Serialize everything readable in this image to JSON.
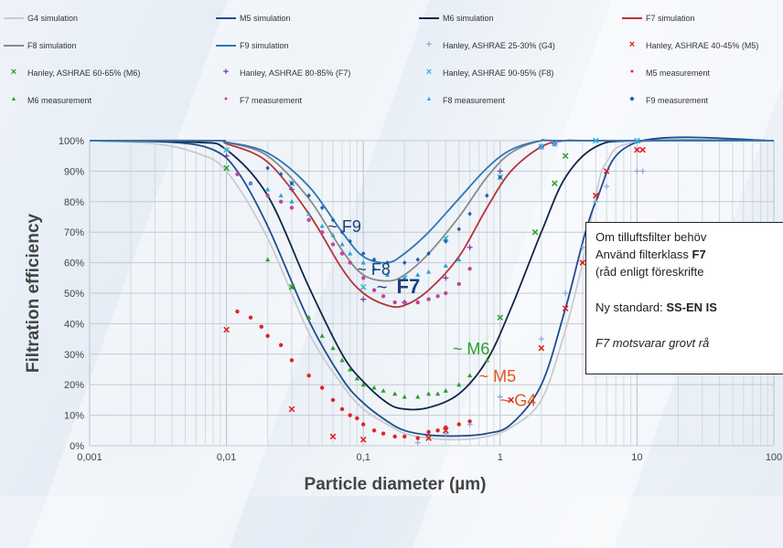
{
  "chart_data": {
    "type": "line",
    "title": "",
    "xlabel": "Particle diameter (µm)",
    "ylabel": "Filtration efficiency",
    "x_scale": "log",
    "xlim": [
      0.001,
      100
    ],
    "ylim": [
      0,
      100
    ],
    "x_ticks": [
      "0,001",
      "0,01",
      "0,1",
      "1",
      "10",
      "100"
    ],
    "y_ticks": [
      "0%",
      "10%",
      "20%",
      "30%",
      "40%",
      "50%",
      "60%",
      "70%",
      "80%",
      "90%",
      "100%"
    ],
    "grid": true,
    "legend_position": "top",
    "series": [
      {
        "name": "G4 simulation",
        "kind": "line",
        "color": "#c8ccd2",
        "x": [
          0.001,
          0.003,
          0.006,
          0.01,
          0.02,
          0.04,
          0.07,
          0.1,
          0.15,
          0.2,
          0.3,
          0.5,
          0.8,
          1.2,
          2,
          3,
          4,
          5,
          6,
          10,
          100
        ],
        "y": [
          100,
          99,
          96,
          90,
          68,
          37,
          20,
          12,
          7,
          4,
          2.5,
          2,
          3,
          6,
          15,
          38,
          60,
          82,
          93,
          99.5,
          100
        ]
      },
      {
        "name": "M5 simulation",
        "kind": "line",
        "color": "#1f4e8c",
        "x": [
          0.001,
          0.004,
          0.008,
          0.012,
          0.02,
          0.04,
          0.07,
          0.1,
          0.15,
          0.2,
          0.3,
          0.5,
          0.8,
          1.2,
          2,
          3,
          5,
          10,
          100
        ],
        "y": [
          100,
          99.5,
          97,
          90,
          72,
          41,
          22,
          14,
          8,
          5,
          3.5,
          3.2,
          4,
          7,
          20,
          45,
          80,
          99.5,
          100
        ]
      },
      {
        "name": "M6 simulation",
        "kind": "line",
        "color": "#0f2747",
        "x": [
          0.001,
          0.006,
          0.01,
          0.02,
          0.04,
          0.07,
          0.1,
          0.15,
          0.2,
          0.3,
          0.5,
          0.8,
          1.2,
          2,
          3,
          5,
          10,
          100
        ],
        "y": [
          100,
          99.5,
          97,
          82,
          52,
          30,
          21,
          14,
          12,
          12.5,
          17,
          28,
          45,
          70,
          88,
          98,
          100,
          100
        ]
      },
      {
        "name": "F7 simulation",
        "kind": "line",
        "color": "#b8323a",
        "x": [
          0.001,
          0.008,
          0.01,
          0.02,
          0.04,
          0.07,
          0.1,
          0.15,
          0.2,
          0.3,
          0.5,
          0.8,
          1.2,
          2,
          3,
          5,
          100
        ],
        "y": [
          100,
          100,
          99,
          93,
          76,
          58,
          50,
          46,
          46,
          51,
          62,
          78,
          90,
          98,
          100,
          100,
          100
        ]
      },
      {
        "name": "F8 simulation",
        "kind": "line",
        "color": "#8a8a8a",
        "x": [
          0.001,
          0.008,
          0.01,
          0.02,
          0.04,
          0.07,
          0.1,
          0.15,
          0.2,
          0.3,
          0.5,
          0.8,
          1.2,
          2,
          3,
          100
        ],
        "y": [
          100,
          100,
          99.5,
          95,
          81,
          64,
          56,
          54,
          56,
          63,
          75,
          88,
          96,
          100,
          100,
          100
        ]
      },
      {
        "name": "F9 simulation",
        "kind": "line",
        "color": "#2e75b6",
        "x": [
          0.001,
          0.008,
          0.01,
          0.02,
          0.04,
          0.07,
          0.1,
          0.15,
          0.2,
          0.3,
          0.5,
          0.8,
          1.2,
          2,
          3,
          100
        ],
        "y": [
          100,
          100,
          99.5,
          96,
          85,
          70,
          62,
          60,
          63,
          70,
          81,
          91,
          97,
          100,
          100,
          100
        ]
      },
      {
        "name": "Hanley, ASHRAE 25-30% (G4)",
        "kind": "marker",
        "marker": "plus",
        "color": "#8fa9d6",
        "x": [
          0.25,
          0.4,
          0.6,
          1.0,
          2.0,
          3.0,
          4.0,
          5.0,
          6.0,
          10.0,
          11.0
        ],
        "y": [
          1,
          4,
          7,
          16,
          35,
          50,
          65,
          80,
          85,
          90,
          90
        ]
      },
      {
        "name": "Hanley, ASHRAE 40-45% (M5)",
        "kind": "marker",
        "marker": "x",
        "color": "#e31a1c",
        "x": [
          0.01,
          0.03,
          0.06,
          0.1,
          0.3,
          0.4,
          1.2,
          2.0,
          3.0,
          4.0,
          5.0,
          6.0,
          10.0,
          11.0
        ],
        "y": [
          38,
          12,
          3,
          2,
          2.5,
          5,
          15,
          32,
          45,
          60,
          82,
          90,
          97,
          97
        ]
      },
      {
        "name": "Hanley, ASHRAE 60-65% (M6)",
        "kind": "marker",
        "marker": "x",
        "color": "#2ca02c",
        "x": [
          0.01,
          0.03,
          1.0,
          1.8,
          2.5,
          3.0
        ],
        "y": [
          91,
          52,
          42,
          70,
          86,
          95
        ]
      },
      {
        "name": "Hanley, ASHRAE 80-85% (F7)",
        "kind": "marker",
        "marker": "plus",
        "color": "#7b3fa0",
        "x": [
          0.01,
          0.03,
          0.1,
          0.2,
          0.4,
          0.6,
          1.0,
          2.0,
          2.5
        ],
        "y": [
          95,
          84,
          48,
          47,
          55,
          65,
          90,
          98,
          99
        ]
      },
      {
        "name": "Hanley, ASHRAE 90-95% (F8)",
        "kind": "marker",
        "marker": "x",
        "color": "#2bb7e0",
        "x": [
          0.01,
          0.03,
          0.1,
          0.2,
          0.4,
          1.0,
          2.0,
          2.5,
          5.0,
          10.0
        ],
        "y": [
          97,
          86,
          52,
          55,
          68,
          88,
          98,
          99,
          100,
          100
        ]
      },
      {
        "name": "M5 measurement",
        "kind": "marker",
        "marker": "dot",
        "color": "#e02424",
        "x": [
          0.012,
          0.015,
          0.018,
          0.02,
          0.025,
          0.03,
          0.04,
          0.05,
          0.06,
          0.07,
          0.08,
          0.09,
          0.1,
          0.12,
          0.14,
          0.17,
          0.2,
          0.25,
          0.3,
          0.35,
          0.4,
          0.5,
          0.6
        ],
        "y": [
          44,
          42,
          39,
          36,
          33,
          28,
          23,
          19,
          15,
          12,
          10,
          9,
          7,
          5,
          4,
          3,
          3,
          2.5,
          4.5,
          5,
          6,
          7,
          8
        ]
      },
      {
        "name": "M6 measurement",
        "kind": "marker",
        "marker": "triangle",
        "color": "#2ca02c",
        "x": [
          0.02,
          0.03,
          0.04,
          0.05,
          0.06,
          0.07,
          0.08,
          0.09,
          0.1,
          0.12,
          0.14,
          0.17,
          0.2,
          0.25,
          0.3,
          0.35,
          0.4,
          0.5,
          0.6,
          0.8
        ],
        "y": [
          61,
          52,
          42,
          36,
          32,
          28,
          25,
          22,
          20,
          19,
          18,
          17,
          16,
          16,
          17,
          17,
          18,
          20,
          23,
          28
        ]
      },
      {
        "name": "F7 measurement",
        "kind": "marker",
        "marker": "dot",
        "color": "#c2459c",
        "x": [
          0.012,
          0.015,
          0.02,
          0.025,
          0.03,
          0.04,
          0.05,
          0.06,
          0.07,
          0.08,
          0.1,
          0.12,
          0.14,
          0.17,
          0.2,
          0.25,
          0.3,
          0.35,
          0.4,
          0.5,
          0.6
        ],
        "y": [
          89,
          86,
          82,
          80,
          78,
          74,
          70,
          66,
          63,
          60,
          55,
          51,
          49,
          47,
          47,
          47,
          48,
          49,
          50,
          53,
          58
        ]
      },
      {
        "name": "F8 measurement",
        "kind": "marker",
        "marker": "triangle",
        "color": "#27a6d9",
        "x": [
          0.015,
          0.02,
          0.025,
          0.03,
          0.04,
          0.05,
          0.06,
          0.07,
          0.08,
          0.1,
          0.12,
          0.15,
          0.2,
          0.25,
          0.3,
          0.4,
          0.5
        ],
        "y": [
          86,
          84,
          82,
          80,
          76,
          72,
          69,
          66,
          63,
          60,
          58,
          56,
          55,
          56,
          57,
          59,
          61
        ]
      },
      {
        "name": "F9 measurement",
        "kind": "marker",
        "marker": "diamond",
        "color": "#1f5fae",
        "x": [
          0.02,
          0.025,
          0.03,
          0.04,
          0.05,
          0.06,
          0.07,
          0.08,
          0.1,
          0.12,
          0.15,
          0.2,
          0.25,
          0.3,
          0.4,
          0.5,
          0.6,
          0.8,
          1.0
        ],
        "y": [
          91,
          89,
          86,
          82,
          78,
          74,
          70,
          67,
          63,
          61,
          60,
          60,
          61,
          63,
          67,
          71,
          76,
          82,
          88
        ]
      }
    ],
    "annotations": [
      {
        "text": "~ F9",
        "x": 0.055,
        "y": 70,
        "color": "#1f3f7a",
        "size": 18,
        "bold": false
      },
      {
        "text": "~ F8",
        "x": 0.09,
        "y": 56,
        "color": "#1f3f7a",
        "size": 18,
        "bold": false
      },
      {
        "text": "~ ",
        "x": 0.125,
        "y": 50,
        "color": "#1f3f7a",
        "size": 20,
        "bold": false
      },
      {
        "text": "F7",
        "x": 0.175,
        "y": 50,
        "color": "#1f3f7a",
        "size": 22,
        "bold": true
      },
      {
        "text": "~ M6",
        "x": 0.45,
        "y": 30,
        "color": "#2ca02c",
        "size": 18,
        "bold": false
      },
      {
        "text": "~ M5",
        "x": 0.7,
        "y": 21,
        "color": "#e8541c",
        "size": 18,
        "bold": false
      },
      {
        "text": "~ G4",
        "x": 1.0,
        "y": 13,
        "color": "#e8541c",
        "size": 18,
        "bold": false
      }
    ]
  },
  "infobox": {
    "line1": "Om tilluftsfilter behöv",
    "line2_pre": "Använd filterklass ",
    "line2_bold": "F7",
    "line3": "(råd enligt föreskrifte",
    "line4_pre": "Ny standard: ",
    "line4_bold": "SS-EN IS",
    "line5": "F7 motsvarar grovt rå"
  }
}
